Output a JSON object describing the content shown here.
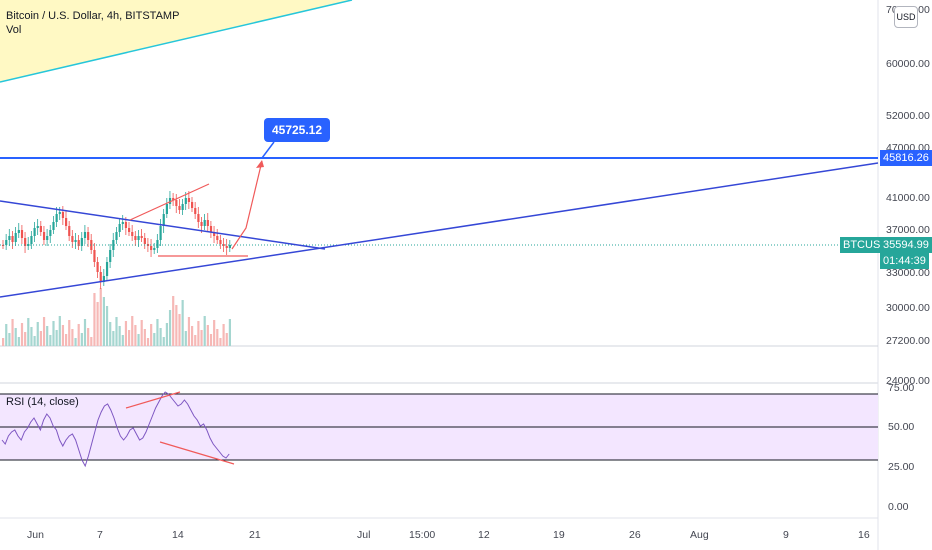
{
  "header": {
    "symbol_title": "Bitcoin / U.S. Dollar, 4h, BITSTAMP",
    "volume_label": "Vol"
  },
  "price_axis": {
    "labels": [
      "70000.00",
      "60000.00",
      "52000.00",
      "47000.00",
      "41000.00",
      "37000.00",
      "33000.00",
      "30000.00",
      "27200.00",
      "24000.00"
    ],
    "currency_button": "USD"
  },
  "time_axis": {
    "labels": [
      "Jun",
      "7",
      "14",
      "21",
      "Jul",
      "15:00",
      "12",
      "19",
      "26",
      "Aug",
      "9",
      "16"
    ]
  },
  "markers": {
    "horizontal_level": "45816.26",
    "symbol_tag": "BTCUSD",
    "last_price": "35594.99",
    "countdown": "01:44:39",
    "target_callout": "45725.12"
  },
  "rsi": {
    "legend": "RSI (14, close)",
    "labels": [
      "75.00",
      "50.00",
      "25.00",
      "0.00"
    ]
  },
  "colors": {
    "blue_line": "#2962ff",
    "trend_line": "#3547d6",
    "red_annotation": "#f05a5a",
    "teal_tag": "#26a69a",
    "rsi_band": "#f3e6ff",
    "rsi_line": "#7e57c2",
    "yellow_fill": "#fff9c4",
    "cyan_line": "#26c6da"
  }
}
